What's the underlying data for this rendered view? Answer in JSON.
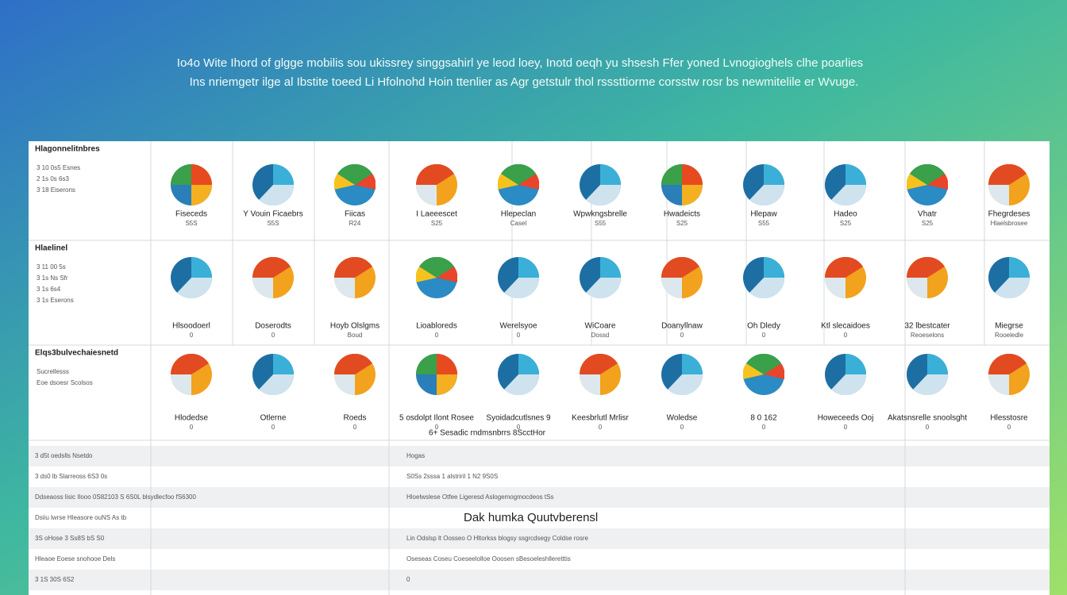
{
  "header": {
    "lines": [
      "Io4o Wite Ihord of glgge mobilis sou ukissrey singgsahirl ye leod loey, Inotd oeqh yu shsesh Ffer yoned Lvnogioghels clhe poarlies",
      "Ins nriemgetr ilge al Ibstite toeed Li Hfolnohd Hoin ttenlier as Agr getstulr thol rsssttiorme corsstw rosr bs newmitelile er Wvuge."
    ]
  },
  "grid": {
    "rows": [
      {
        "title": "Hlagonnelitnbres",
        "side": [
          "3 10 0s5 Esnes",
          "2 1s 0s 6s3",
          "3 18 Eiserons"
        ],
        "cells": [
          {
            "label": "Fiseceds",
            "sub": "S5S"
          },
          {
            "label": "Y Vouin Ficaebrs",
            "sub": "S5S"
          },
          {
            "label": "Fiicas",
            "sub": "R24"
          },
          {
            "label": "I Laeeescet",
            "sub": "S25"
          },
          {
            "label": "Hlepeclan",
            "sub": "Casel"
          },
          {
            "label": "Wpwkngsbrelle",
            "sub": "S55"
          },
          {
            "label": "Hwadeicts",
            "sub": "S25"
          },
          {
            "label": "Hlepaw",
            "sub": "S55"
          },
          {
            "label": "Hadeo",
            "sub": "S25"
          },
          {
            "label": "Vhatr",
            "sub": "S25"
          },
          {
            "label": "Fhegrdeses",
            "sub": "Hlaelsbrosee"
          }
        ]
      },
      {
        "title": "Hlaelinel",
        "side": [
          "3 11 00 5s",
          "3 1s Ns Sfr",
          "3 1s 6s4",
          "3 1s Eserons"
        ],
        "cells": [
          {
            "label": "Hlsoodoerl",
            "sub": "0"
          },
          {
            "label": "Doserodts",
            "sub": "0"
          },
          {
            "label": "Hoyb Olslgms",
            "sub": "Boud"
          },
          {
            "label": "Lioabloreds",
            "sub": "0"
          },
          {
            "label": "Werelsyoe",
            "sub": "0"
          },
          {
            "label": "WiCoare",
            "sub": "Dossd"
          },
          {
            "label": "Doanyllnaw",
            "sub": "0"
          },
          {
            "label": "Oh Dledy",
            "sub": "0"
          },
          {
            "label": "Ktl slecaidoes",
            "sub": "0"
          },
          {
            "label": "32 lbestcater",
            "sub": "Reoeselons"
          },
          {
            "label": "Miegrse",
            "sub": "Rooeledle"
          }
        ]
      },
      {
        "title": "Elqs3bulvechaiesnetd",
        "side": [
          "Sucrellesss",
          "Eoe dsoesr Scolsos"
        ],
        "cells": [
          {
            "label": "Hlodedse",
            "sub": "0"
          },
          {
            "label": "Otlerne",
            "sub": "0"
          },
          {
            "label": "Roeds",
            "sub": "0"
          },
          {
            "label": "5 osdolpt Ilont Rosee",
            "sub": "0"
          },
          {
            "label": "Syoidadcutlsnes 9",
            "sub": "0"
          },
          {
            "label": "Keesbrlutl Mrlisr",
            "sub": "0"
          },
          {
            "label": "Woledse",
            "sub": "0"
          },
          {
            "label": "8 0 162",
            "sub": "0"
          },
          {
            "label": "Howeceeds Ooj",
            "sub": "0"
          },
          {
            "label": "Akatsnsrelle snoolsght",
            "sub": "0"
          },
          {
            "label": "Hlesstosre",
            "sub": "0"
          }
        ]
      }
    ]
  },
  "caption": "6+ Sesadic rndmsnbrrs 8ScctHor",
  "table": {
    "rows": [
      {
        "left": "3 d5t oedslls Nsetdo",
        "mid": "Hogas"
      },
      {
        "left": "3 ds0 lb Slarreoss 6S3 0s",
        "mid": "S0Ss 2sssa 1 alstriril 1 N2 9S0S"
      },
      {
        "left": "Ddseaoss lisic Ilooo 0S82103 S 6S0L blsydlecfoo fS6300",
        "mid": "Hloelwslese Otfee Ligeresd Aslogemogmocdeos tSs"
      },
      {
        "left": "Dsiiu lwrse Hleasore ouNS As tb",
        "mid": "Dak humka Quutvberensl"
      },
      {
        "left": "3S oHose 3 Ss8S bS S0",
        "mid": "Lin Odslsp lt Oosseo O Hltorkss blogsy ssgrcdsegy Coldse rosre"
      },
      {
        "left": "Hleaoe Eoese snohooe Dels",
        "mid": "Oseseas Coseu Coeseelolloe Ooosen sBesoeleshlleretttis"
      },
      {
        "left": "3 1S 30S 6S2",
        "mid": "0"
      }
    ]
  }
}
